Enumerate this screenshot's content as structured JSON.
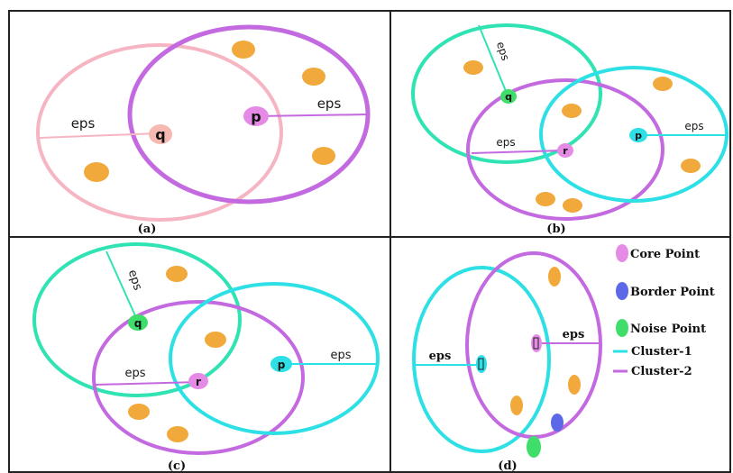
{
  "colors": {
    "core": "#e58be6",
    "border": "#5b68e8",
    "noise": "#3fdd6a",
    "cluster1": "#2de0e6",
    "cluster2": "#c46ae0",
    "pink_circle": "#f6b5c2",
    "teal_circle": "#2fe3b3",
    "point_fill": "#f2a93b",
    "q_fill": "#f6b9b1"
  },
  "panels": {
    "a": {
      "caption": "(a)",
      "label_q": "q",
      "label_p": "p",
      "eps_left": "eps",
      "eps_right": "eps"
    },
    "b": {
      "caption": "(b)",
      "label_q": "q",
      "label_r": "r",
      "label_p": "p",
      "eps_top": "eps",
      "eps_left": "eps",
      "eps_right": "eps"
    },
    "c": {
      "caption": "(c)",
      "label_q": "q",
      "label_r": "r",
      "label_p": "p",
      "eps_top": "eps",
      "eps_left": "eps",
      "eps_right": "eps"
    },
    "d": {
      "caption": "(d)",
      "eps_left": "eps",
      "eps_right": "eps"
    }
  },
  "legend": {
    "core": "Core Point",
    "border": "Border Point",
    "noise": "Noise Point",
    "cluster1": "Cluster-1",
    "cluster2": "Cluster-2"
  }
}
